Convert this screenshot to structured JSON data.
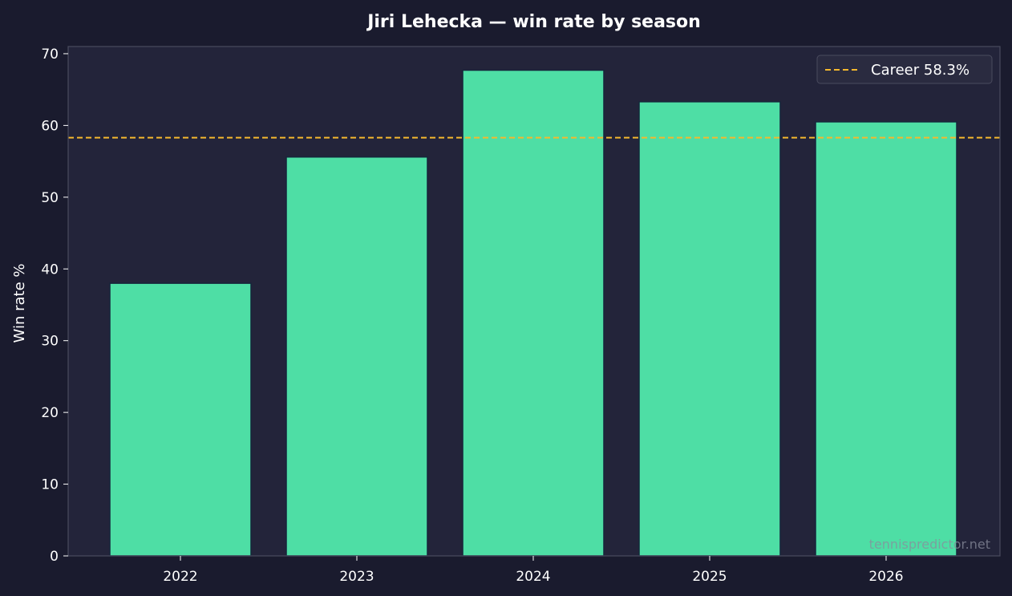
{
  "chart_data": {
    "type": "bar",
    "title": "Jiri Lehecka — win rate by season",
    "xlabel": "",
    "ylabel": "Win rate %",
    "categories": [
      "2022",
      "2023",
      "2024",
      "2025",
      "2026"
    ],
    "values": [
      38.0,
      55.6,
      67.7,
      63.3,
      60.5
    ],
    "ylim": [
      0,
      71
    ],
    "yticks": [
      0,
      10,
      20,
      30,
      40,
      50,
      60,
      70
    ],
    "grid": false,
    "reference_line": {
      "label": "Career 58.3%",
      "value": 58.3,
      "style": "dashed"
    },
    "legend": {
      "position": "top-right",
      "entries": [
        "Career 58.3%"
      ]
    },
    "colors": {
      "background": "#1a1b2e",
      "plot_area": "#23243a",
      "bar_fill": "#4edea5",
      "bar_edge": "#16243a",
      "reference_line": "#f5b82e",
      "axis_spine": "#4a4b5e",
      "text": "#ffffff"
    }
  },
  "watermark": "tennispredictor.net"
}
